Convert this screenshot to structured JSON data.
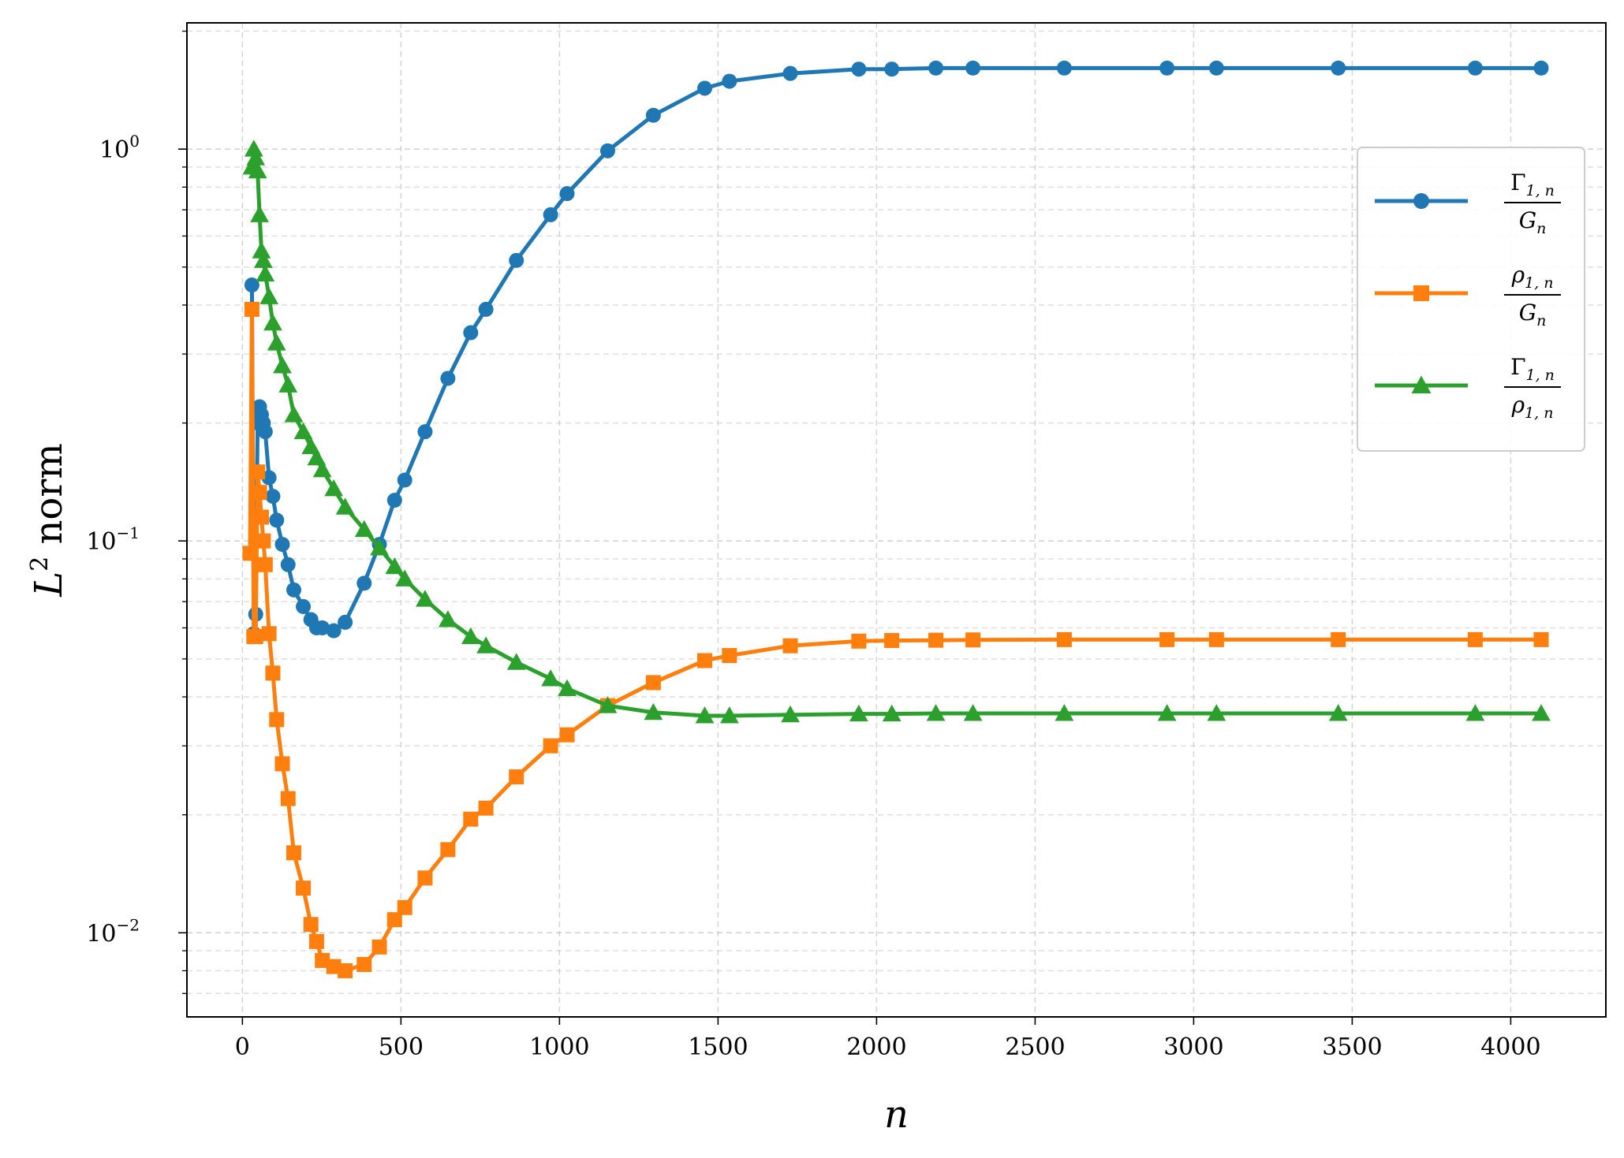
{
  "chart_data": {
    "type": "line",
    "xlabel": "n",
    "ylabel": {
      "base": "L",
      "sup": "2",
      "rest": " norm"
    },
    "y_scale": "log",
    "xlim": [
      -175,
      4300
    ],
    "ylim": [
      0.0061,
      2.1
    ],
    "x_ticks": [
      0,
      500,
      1000,
      1500,
      2000,
      2500,
      3000,
      3500,
      4000
    ],
    "y_ticks": [
      {
        "value": 0.01,
        "base": "10",
        "exp": "−2"
      },
      {
        "value": 0.1,
        "base": "10",
        "exp": "−1"
      },
      {
        "value": 1,
        "base": "10",
        "exp": "0"
      }
    ],
    "grid": true,
    "legend_position": "upper right",
    "series": [
      {
        "name": "Γ1,n / Gn",
        "legend": {
          "num": "Γ",
          "num_sub": "1, n",
          "den": "G",
          "den_sub": "n"
        },
        "color": "#1f77b4",
        "marker": "circle",
        "x": [
          30,
          36,
          42,
          48,
          54,
          60,
          66,
          72,
          84,
          96,
          108,
          126,
          144,
          162,
          192,
          216,
          234,
          252,
          288,
          324,
          384,
          432,
          480,
          512,
          576,
          648,
          720,
          768,
          864,
          972,
          1024,
          1152,
          1296,
          1458,
          1536,
          1728,
          1944,
          2048,
          2187,
          2304,
          2592,
          2916,
          3072,
          3456,
          3888,
          4096
        ],
        "y": [
          0.45,
          0.058,
          0.065,
          0.2,
          0.22,
          0.21,
          0.2,
          0.19,
          0.145,
          0.13,
          0.113,
          0.098,
          0.087,
          0.075,
          0.068,
          0.063,
          0.06,
          0.06,
          0.059,
          0.062,
          0.078,
          0.098,
          0.127,
          0.143,
          0.19,
          0.26,
          0.34,
          0.39,
          0.52,
          0.68,
          0.77,
          0.99,
          1.22,
          1.43,
          1.49,
          1.56,
          1.6,
          1.6,
          1.61,
          1.61,
          1.61,
          1.61,
          1.61,
          1.61,
          1.61,
          1.61
        ]
      },
      {
        "name": "ρ1,n / Gn",
        "legend": {
          "num": "ρ",
          "num_sub": "1, n",
          "den": "G",
          "den_sub": "n"
        },
        "color": "#ff7f0e",
        "marker": "square",
        "x": [
          24,
          30,
          36,
          42,
          48,
          54,
          60,
          66,
          72,
          84,
          96,
          108,
          126,
          144,
          162,
          192,
          216,
          234,
          252,
          288,
          324,
          384,
          432,
          480,
          512,
          576,
          648,
          720,
          768,
          864,
          972,
          1024,
          1152,
          1296,
          1458,
          1536,
          1728,
          1944,
          2048,
          2187,
          2304,
          2592,
          2916,
          3072,
          3456,
          3888,
          4096
        ],
        "y": [
          0.093,
          0.39,
          0.057,
          0.057,
          0.15,
          0.133,
          0.115,
          0.1,
          0.087,
          0.058,
          0.046,
          0.035,
          0.027,
          0.022,
          0.016,
          0.013,
          0.0105,
          0.0095,
          0.0085,
          0.0082,
          0.008,
          0.0083,
          0.0092,
          0.0108,
          0.0116,
          0.0138,
          0.0163,
          0.0195,
          0.0208,
          0.025,
          0.03,
          0.032,
          0.038,
          0.0435,
          0.0495,
          0.051,
          0.054,
          0.0555,
          0.0557,
          0.0558,
          0.0559,
          0.056,
          0.056,
          0.056,
          0.056,
          0.056,
          0.056
        ]
      },
      {
        "name": "Γ1,n / ρ1,n",
        "legend": {
          "num": "Γ",
          "num_sub": "1, n",
          "den": "ρ",
          "den_sub": "1, n"
        },
        "color": "#2ca02c",
        "marker": "triangle",
        "x": [
          30,
          36,
          42,
          48,
          54,
          60,
          66,
          72,
          84,
          96,
          108,
          126,
          144,
          162,
          192,
          216,
          234,
          252,
          288,
          324,
          384,
          432,
          480,
          512,
          576,
          648,
          720,
          768,
          864,
          972,
          1024,
          1152,
          1296,
          1458,
          1536,
          1728,
          1944,
          2048,
          2187,
          2304,
          2592,
          2916,
          3072,
          3456,
          3888,
          4096
        ],
        "y": [
          0.9,
          1.0,
          0.95,
          0.88,
          0.68,
          0.55,
          0.52,
          0.48,
          0.42,
          0.36,
          0.32,
          0.28,
          0.25,
          0.21,
          0.19,
          0.174,
          0.163,
          0.152,
          0.136,
          0.122,
          0.107,
          0.096,
          0.086,
          0.08,
          0.071,
          0.063,
          0.057,
          0.054,
          0.049,
          0.0445,
          0.042,
          0.038,
          0.0365,
          0.0358,
          0.0358,
          0.036,
          0.0362,
          0.0362,
          0.0363,
          0.0363,
          0.0363,
          0.0363,
          0.0363,
          0.0363,
          0.0363,
          0.0363
        ]
      }
    ]
  }
}
